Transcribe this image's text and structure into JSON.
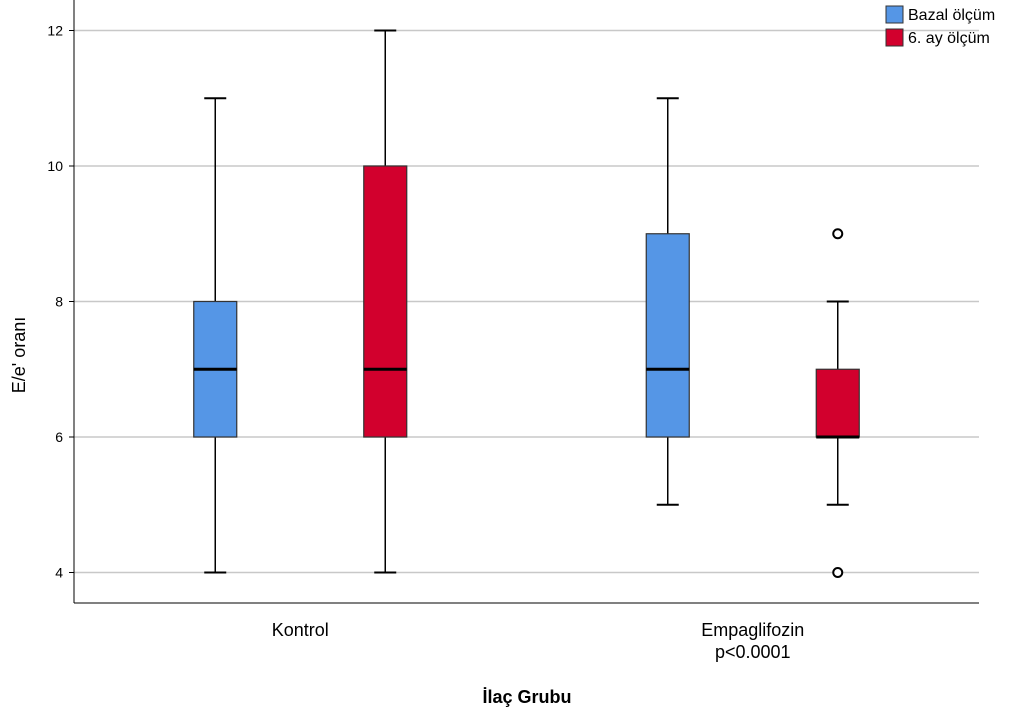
{
  "chart_data": {
    "type": "boxplot",
    "title": "",
    "xlabel": "İlaç Grubu",
    "ylabel": "E/e' oranı",
    "ylim": [
      3.55,
      12.45
    ],
    "yticks": [
      4,
      6,
      8,
      10,
      12
    ],
    "grid": "horizontal",
    "legend_position": "top-right",
    "categories": [
      {
        "label": "Kontrol",
        "sublabel": ""
      },
      {
        "label": "Empaglifozin",
        "sublabel": "p<0.0001"
      }
    ],
    "series": [
      {
        "name": "Bazal ölçüm",
        "color": "#5596e6",
        "boxes": [
          {
            "min": 4,
            "q1": 6,
            "median": 7,
            "q3": 8,
            "max": 11,
            "outliers": []
          },
          {
            "min": 5,
            "q1": 6,
            "median": 7,
            "q3": 9,
            "max": 11,
            "outliers": []
          }
        ]
      },
      {
        "name": "6. ay ölçüm",
        "color": "#d2002d",
        "boxes": [
          {
            "min": 4,
            "q1": 6,
            "median": 7,
            "q3": 10,
            "max": 12,
            "outliers": []
          },
          {
            "min": 5,
            "q1": 6,
            "median": 6,
            "q3": 7,
            "max": 8,
            "outliers": [
              9,
              4
            ]
          }
        ]
      }
    ]
  }
}
